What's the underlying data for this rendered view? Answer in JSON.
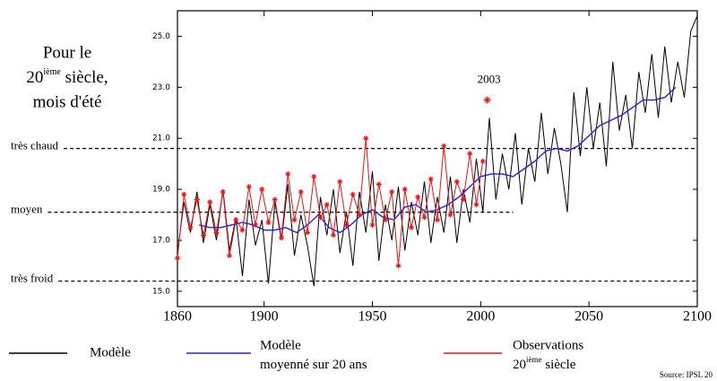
{
  "chart_data": {
    "type": "line",
    "title": {
      "line1": "Pour le",
      "line2": "20",
      "line2_sup": "ième",
      "line2_rest": " siècle,",
      "line3": "mois d'été"
    },
    "xlim": [
      1860,
      2100
    ],
    "xticks": [
      1860,
      1900,
      1950,
      2000,
      2050,
      2100
    ],
    "ylim": [
      14.4,
      26.0
    ],
    "yticks": [
      {
        "value": 15,
        "label": "15.0"
      },
      {
        "value": 17,
        "label": "17.0"
      },
      {
        "value": 19,
        "label": "19.0"
      },
      {
        "value": 21,
        "label": "21.0"
      },
      {
        "value": 23,
        "label": "23.0"
      },
      {
        "value": 25,
        "label": "25.0"
      }
    ],
    "series": [
      {
        "name": {
          "line1": "Modèle"
        },
        "color": "#000000",
        "markers": false,
        "x": [
          1860,
          1863,
          1866,
          1869,
          1872,
          1875,
          1878,
          1881,
          1884,
          1887,
          1890,
          1893,
          1896,
          1899,
          1902,
          1905,
          1908,
          1911,
          1914,
          1917,
          1920,
          1923,
          1926,
          1929,
          1932,
          1935,
          1938,
          1941,
          1944,
          1947,
          1950,
          1953,
          1956,
          1959,
          1962,
          1965,
          1968,
          1971,
          1974,
          1977,
          1980,
          1983,
          1986,
          1989,
          1992,
          1995,
          1998,
          2001,
          2004,
          2007,
          2010,
          2013,
          2016,
          2019,
          2022,
          2025,
          2028,
          2031,
          2034,
          2037,
          2040,
          2043,
          2046,
          2049,
          2052,
          2055,
          2058,
          2061,
          2064,
          2067,
          2070,
          2073,
          2076,
          2079,
          2082,
          2085,
          2088,
          2091,
          2094,
          2097,
          2100
        ],
        "values": [
          16.5,
          18.5,
          17.3,
          18.9,
          16.9,
          18.4,
          17.0,
          19.0,
          16.6,
          17.9,
          15.6,
          18.6,
          16.8,
          17.8,
          15.3,
          18.5,
          17.0,
          19.2,
          16.4,
          18.0,
          16.8,
          15.2,
          18.7,
          17.2,
          19.0,
          16.5,
          18.1,
          16.0,
          18.9,
          17.3,
          19.7,
          16.2,
          18.4,
          17.0,
          19.1,
          16.6,
          18.5,
          17.2,
          19.3,
          16.9,
          18.7,
          17.3,
          19.5,
          16.9,
          19.0,
          17.7,
          20.2,
          18.1,
          21.8,
          18.6,
          20.4,
          19.0,
          21.2,
          18.4,
          20.6,
          19.3,
          22.0,
          19.6,
          21.4,
          20.0,
          18.1,
          22.8,
          20.3,
          23.0,
          20.6,
          22.4,
          19.9,
          24.0,
          21.3,
          22.7,
          20.6,
          23.6,
          22.0,
          24.3,
          21.8,
          24.6,
          22.4,
          24.0,
          22.6,
          25.2,
          25.8
        ]
      },
      {
        "name": {
          "line1": "Modèle",
          "line2": "moyenné sur 20 ans"
        },
        "color": "#2222dd",
        "markers": false,
        "x": [
          1870,
          1875,
          1880,
          1885,
          1890,
          1895,
          1900,
          1905,
          1910,
          1915,
          1920,
          1925,
          1930,
          1935,
          1940,
          1945,
          1950,
          1955,
          1960,
          1965,
          1970,
          1975,
          1980,
          1985,
          1990,
          1995,
          2000,
          2005,
          2010,
          2015,
          2020,
          2025,
          2030,
          2035,
          2040,
          2045,
          2050,
          2055,
          2060,
          2065,
          2070,
          2075,
          2080,
          2085,
          2090
        ],
        "values": [
          17.6,
          17.5,
          17.5,
          17.6,
          17.7,
          17.6,
          17.4,
          17.4,
          17.5,
          17.3,
          17.6,
          18.0,
          17.5,
          17.3,
          17.6,
          18.0,
          18.2,
          17.9,
          17.8,
          18.3,
          18.4,
          18.1,
          18.2,
          18.4,
          18.7,
          19.1,
          19.5,
          19.6,
          19.6,
          19.5,
          19.8,
          20.1,
          20.5,
          20.6,
          20.5,
          20.7,
          21.1,
          21.5,
          21.7,
          21.9,
          22.2,
          22.5,
          22.5,
          22.6,
          23.0
        ]
      },
      {
        "name": {
          "line1": "Observations",
          "line2": "20",
          "line2_sup": "ième",
          "line2_rest": " siècle"
        },
        "color": "#ee1111",
        "markers": true,
        "x": [
          1860,
          1863,
          1866,
          1869,
          1872,
          1875,
          1878,
          1881,
          1884,
          1887,
          1890,
          1893,
          1896,
          1899,
          1902,
          1905,
          1908,
          1911,
          1914,
          1917,
          1920,
          1923,
          1926,
          1929,
          1932,
          1935,
          1938,
          1941,
          1944,
          1947,
          1950,
          1953,
          1956,
          1959,
          1962,
          1965,
          1968,
          1971,
          1974,
          1977,
          1980,
          1983,
          1986,
          1989,
          1992,
          1995,
          1998,
          2001
        ],
        "values": [
          16.3,
          18.8,
          17.5,
          18.6,
          17.2,
          18.5,
          17.3,
          18.9,
          16.4,
          17.8,
          17.4,
          19.1,
          17.6,
          19.0,
          17.7,
          18.6,
          17.1,
          19.6,
          17.8,
          18.9,
          17.3,
          19.5,
          17.9,
          18.4,
          17.2,
          19.3,
          17.6,
          18.8,
          18.0,
          21.0,
          17.6,
          19.2,
          17.8,
          18.9,
          16.0,
          19.0,
          17.5,
          18.7,
          17.9,
          19.4,
          17.8,
          20.7,
          18.0,
          19.3,
          18.6,
          20.4,
          18.4,
          20.1
        ]
      }
    ],
    "annotation": {
      "x": 2003,
      "y": 22.5,
      "color": "#ee1111"
    },
    "reference_lines": [
      {
        "label": "très chaud",
        "value": 20.6,
        "x_end": 2100
      },
      {
        "label": "moyen",
        "value": 18.1,
        "x_end": 2015
      },
      {
        "label": "très froid",
        "value": 15.4,
        "x_end": 2100
      }
    ],
    "source": "Source: IPSL 20"
  }
}
